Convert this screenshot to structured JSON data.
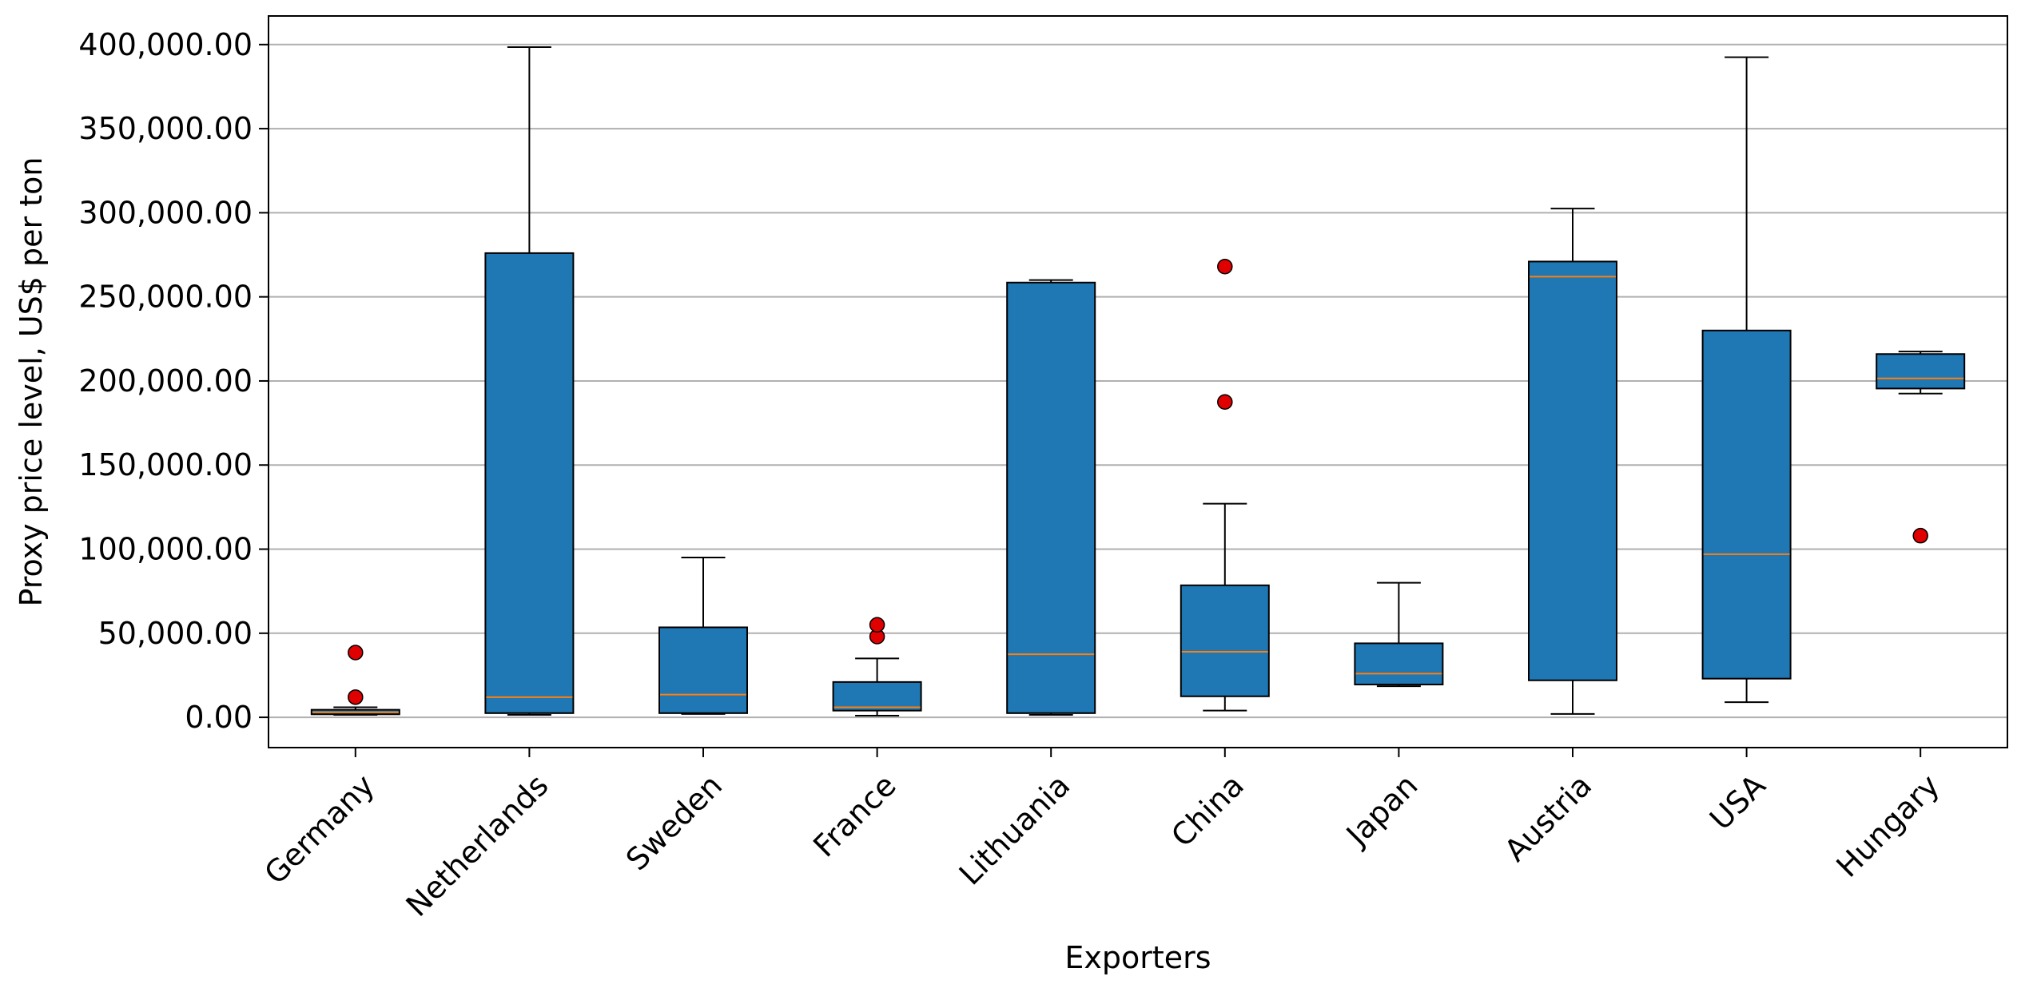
{
  "chart_data": {
    "type": "box",
    "title": "",
    "xlabel": "Exporters",
    "ylabel": "Proxy price level, US$ per ton",
    "ylim": [
      -18000,
      417000
    ],
    "yticks": [
      0,
      50000,
      100000,
      150000,
      200000,
      250000,
      300000,
      350000,
      400000
    ],
    "ytick_labels": [
      "0.00",
      "50,000.00",
      "100,000.00",
      "150,000.00",
      "200,000.00",
      "250,000.00",
      "300,000.00",
      "350,000.00",
      "400,000.00"
    ],
    "grid": "horizontal",
    "categories": [
      "Germany",
      "Netherlands",
      "Sweden",
      "France",
      "Lithuania",
      "China",
      "Japan",
      "Austria",
      "USA",
      "Hungary"
    ],
    "boxes": [
      {
        "whisker_low": 1500,
        "q1": 1800,
        "median": 3000,
        "q3": 4500,
        "whisker_high": 6000,
        "outliers": [
          12000,
          38500
        ]
      },
      {
        "whisker_low": 1500,
        "q1": 2500,
        "median": 12000,
        "q3": 276000,
        "whisker_high": 398500,
        "outliers": []
      },
      {
        "whisker_low": 2000,
        "q1": 2500,
        "median": 13500,
        "q3": 53500,
        "whisker_high": 95000,
        "outliers": []
      },
      {
        "whisker_low": 1000,
        "q1": 4000,
        "median": 6000,
        "q3": 21000,
        "whisker_high": 35000,
        "outliers": [
          48000,
          55000
        ]
      },
      {
        "whisker_low": 1500,
        "q1": 2500,
        "median": 37500,
        "q3": 258500,
        "whisker_high": 260000,
        "outliers": []
      },
      {
        "whisker_low": 4000,
        "q1": 12500,
        "median": 39000,
        "q3": 78500,
        "whisker_high": 127000,
        "outliers": [
          187500,
          268000
        ]
      },
      {
        "whisker_low": 18500,
        "q1": 19500,
        "median": 26000,
        "q3": 44000,
        "whisker_high": 80000,
        "outliers": []
      },
      {
        "whisker_low": 2000,
        "q1": 22000,
        "median": 262000,
        "q3": 271000,
        "whisker_high": 302500,
        "outliers": []
      },
      {
        "whisker_low": 9000,
        "q1": 23000,
        "median": 97000,
        "q3": 230000,
        "whisker_high": 392500,
        "outliers": []
      },
      {
        "whisker_low": 192500,
        "q1": 195500,
        "median": 201500,
        "q3": 216000,
        "whisker_high": 217500,
        "outliers": [
          108000
        ]
      }
    ],
    "colors": {
      "box_fill": "#1f77b4",
      "median": "#ff7f0e",
      "outlier": "#e00000",
      "grid": "#b0b0b0",
      "edge": "#000000"
    }
  }
}
